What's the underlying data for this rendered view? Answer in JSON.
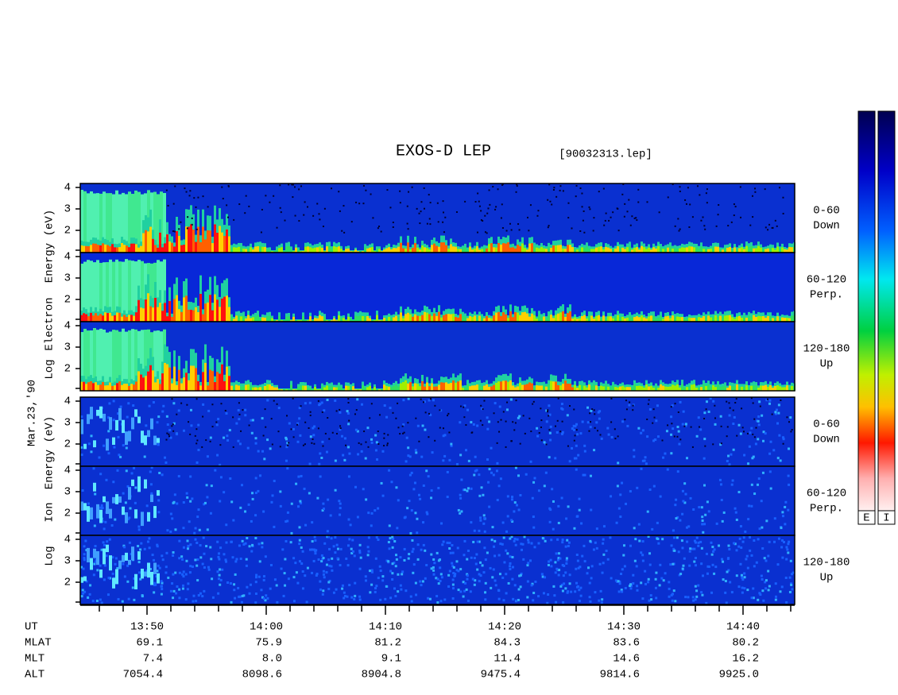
{
  "title": "EXOS-D LEP",
  "file": "[90032313.lep]",
  "date": "Mar.23,'90",
  "electron": {
    "label": [
      "Log",
      "Electron",
      "Energy (eV)"
    ],
    "panels": [
      {
        "yticks": [
          "4",
          "3",
          "2"
        ],
        "label": [
          "0-60",
          "Down"
        ]
      },
      {
        "yticks": [
          "4",
          "3",
          "2"
        ],
        "label": [
          "60-120",
          "Perp."
        ]
      },
      {
        "yticks": [
          "4",
          "3",
          "2"
        ],
        "label": [
          "120-180",
          "Up"
        ]
      }
    ]
  },
  "ion": {
    "label": [
      "Log",
      "Ion",
      "Energy (eV)"
    ],
    "panels": [
      {
        "yticks": [
          "4",
          "3",
          "2"
        ],
        "label": [
          "0-60",
          "Down"
        ]
      },
      {
        "yticks": [
          "4",
          "3",
          "2"
        ],
        "label": [
          "60-120",
          "Perp."
        ]
      },
      {
        "yticks": [
          "4",
          "3",
          "2"
        ],
        "label": [
          "120-180",
          "Up"
        ]
      }
    ]
  },
  "rows": [
    {
      "name": "UT",
      "values": [
        "13:50",
        "14:00",
        "14:10",
        "14:20",
        "14:30",
        "14:40"
      ]
    },
    {
      "name": "MLAT",
      "values": [
        "69.1",
        "75.9",
        "81.2",
        "84.3",
        "83.6",
        "80.2"
      ]
    },
    {
      "name": "MLT",
      "values": [
        "7.4",
        "8.0",
        "9.1",
        "11.4",
        "14.6",
        "16.2"
      ]
    },
    {
      "name": "ALT",
      "values": [
        "7054.4",
        "8098.6",
        "8904.8",
        "9475.4",
        "9814.6",
        "9925.0"
      ]
    }
  ],
  "colorbars": [
    "E",
    "I"
  ]
}
